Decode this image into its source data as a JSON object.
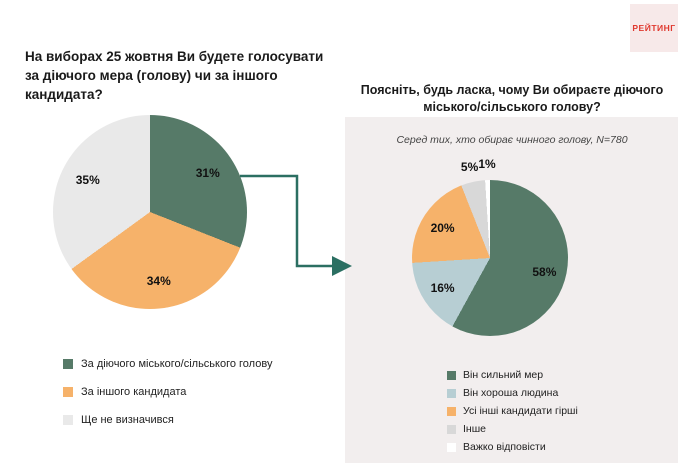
{
  "logo": {
    "text": "РЕЙТИНГ",
    "color": "#e0392f",
    "background": "#f7e9e9"
  },
  "arrow": {
    "color": "#2b6f62"
  },
  "panel_background": "#f2eeee",
  "chart_data": [
    {
      "type": "pie",
      "title": "На виборах 25 жовтня Ви будете голосувати за діючого мера (голову) чи за іншого кандидата?",
      "labels": [
        "За діючого міського/сільського голову",
        "За іншого кандидата",
        "Ще не визначився"
      ],
      "values": [
        31,
        34,
        35
      ],
      "value_labels": [
        "31%",
        "34%",
        "35%"
      ],
      "colors": [
        "#567a68",
        "#f6b26a",
        "#e9e9e9"
      ],
      "start_angle_deg": 0,
      "direction": "clockwise",
      "legend_position": "bottom-left"
    },
    {
      "type": "pie",
      "title": "Поясніть, будь ласка, чому Ви обираєте діючого міського/сільського голову?",
      "subtitle": "Серед тих, хто обирає чинного голову, N=780",
      "labels": [
        "Він сильний мер",
        "Він хороша людина",
        "Усі інші кандидати гірші",
        "Інше",
        "Важко відповісти"
      ],
      "values": [
        58,
        16,
        20,
        5,
        1
      ],
      "value_labels": [
        "58%",
        "16%",
        "20%",
        "5%",
        "1%"
      ],
      "colors": [
        "#567a68",
        "#b7ced3",
        "#f6b26a",
        "#d8d8d8",
        "#ffffff"
      ],
      "start_angle_deg": 0,
      "direction": "clockwise",
      "legend_position": "bottom-right"
    }
  ]
}
